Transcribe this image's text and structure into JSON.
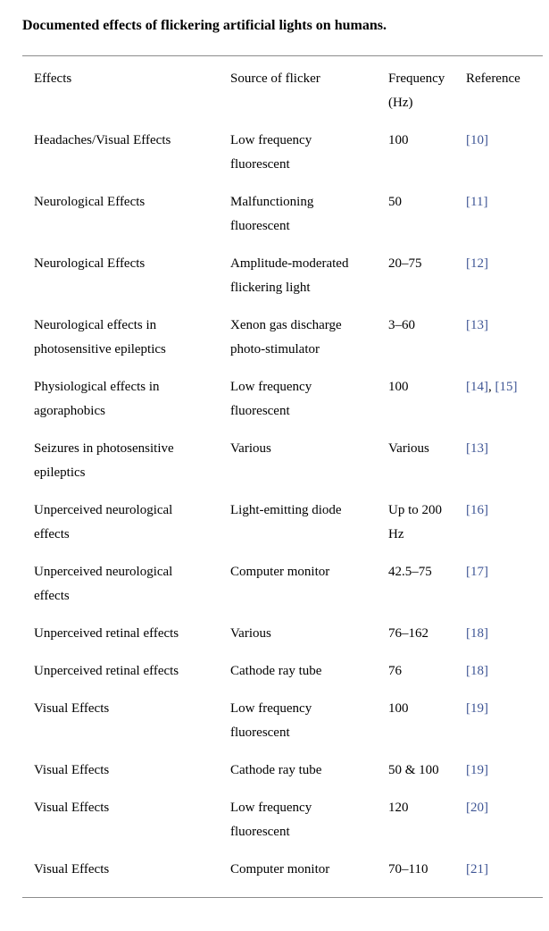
{
  "colors": {
    "text": "#000000",
    "link": "#3f5695",
    "rule": "#8c8c8c",
    "background": "#ffffff"
  },
  "table": {
    "caption": "Documented effects of flickering artificial lights on humans.",
    "columns": [
      {
        "id": "effects",
        "label": "Effects"
      },
      {
        "id": "source",
        "label": "Source of flicker"
      },
      {
        "id": "frequency",
        "label": "Frequency (Hz)"
      },
      {
        "id": "reference",
        "label": "Reference"
      }
    ],
    "reference_separator": ", ",
    "rows": [
      {
        "effect": "Headaches/Visual Effects",
        "source": "Low frequency\nfluorescent",
        "frequency": "100",
        "references": [
          "[10]"
        ]
      },
      {
        "effect": "Neurological Effects",
        "source": "Malfunctioning\nfluorescent",
        "frequency": "50",
        "references": [
          "[11]"
        ]
      },
      {
        "effect": "Neurological Effects",
        "source": "Amplitude-moderated\nflickering light",
        "frequency": "20–75",
        "references": [
          "[12]"
        ]
      },
      {
        "effect": "Neurological effects in\nphotosensitive epileptics",
        "source": "Xenon gas discharge\nphoto-stimulator",
        "frequency": "3–60",
        "references": [
          "[13]"
        ]
      },
      {
        "effect": "Physiological effects in\nagoraphobics",
        "source": "Low frequency\nfluorescent",
        "frequency": "100",
        "references": [
          "[14]",
          "[15]"
        ]
      },
      {
        "effect": "Seizures in photosensitive\nepileptics",
        "source": "Various",
        "frequency": "Various",
        "references": [
          "[13]"
        ]
      },
      {
        "effect": "Unperceived neurological\neffects",
        "source": "Light-emitting diode",
        "frequency": "Up to 200\nHz",
        "references": [
          "[16]"
        ]
      },
      {
        "effect": "Unperceived neurological\neffects",
        "source": "Computer monitor",
        "frequency": "42.5–75",
        "references": [
          "[17]"
        ]
      },
      {
        "effect": "Unperceived retinal effects",
        "source": "Various",
        "frequency": "76–162",
        "references": [
          "[18]"
        ]
      },
      {
        "effect": "Unperceived retinal effects",
        "source": "Cathode ray tube",
        "frequency": "76",
        "references": [
          "[18]"
        ]
      },
      {
        "effect": "Visual Effects",
        "source": "Low frequency\nfluorescent",
        "frequency": "100",
        "references": [
          "[19]"
        ]
      },
      {
        "effect": "Visual Effects",
        "source": "Cathode ray tube",
        "frequency": "50 & 100",
        "references": [
          "[19]"
        ]
      },
      {
        "effect": "Visual Effects",
        "source": "Low frequency\nfluorescent",
        "frequency": "120",
        "references": [
          "[20]"
        ]
      },
      {
        "effect": "Visual Effects",
        "source": "Computer monitor",
        "frequency": "70–110",
        "references": [
          "[21]"
        ]
      }
    ]
  }
}
